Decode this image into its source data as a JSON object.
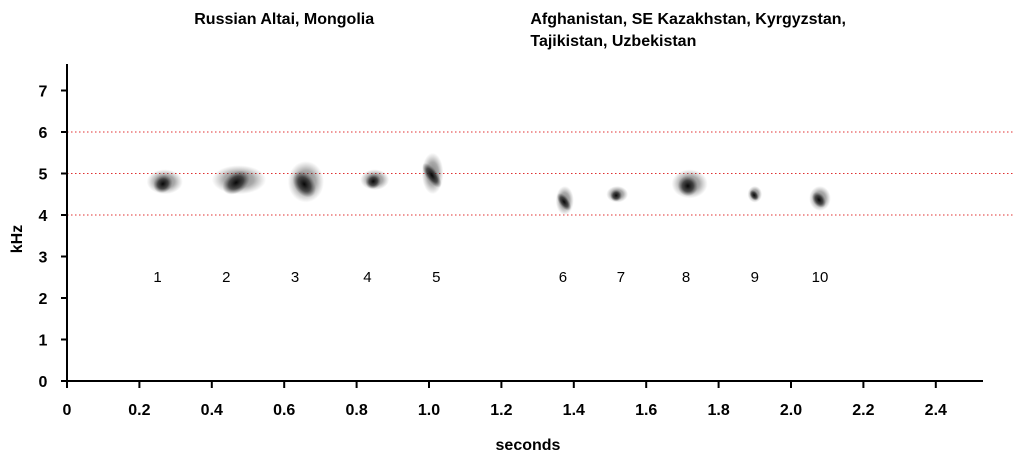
{
  "chart_data": {
    "type": "scatter",
    "title": "",
    "xlabel": "seconds",
    "ylabel": "kHz",
    "xlim": [
      0,
      2.5
    ],
    "ylim": [
      0,
      7.5
    ],
    "x_ticks": [
      0,
      0.2,
      0.4,
      0.6,
      0.8,
      1.0,
      1.2,
      1.4,
      1.6,
      1.8,
      2.0,
      2.2,
      2.4
    ],
    "x_tick_labels": [
      "0",
      "0.2",
      "0.4",
      "0.6",
      "0.8",
      "1.0",
      "1.2",
      "1.4",
      "1.6",
      "1.8",
      "2.0",
      "2.2",
      "2.4"
    ],
    "y_ticks": [
      0,
      1,
      2,
      3,
      4,
      5,
      6,
      7
    ],
    "y_tick_labels": [
      "0",
      "1",
      "2",
      "3",
      "4",
      "5",
      "6",
      "7"
    ],
    "reference_lines_khz": [
      4,
      5,
      6
    ],
    "reference_line_color": "#e03030",
    "grid": false,
    "regions": [
      {
        "label": "Russian Altai, Mongolia",
        "x_center": 0.6
      },
      {
        "label_lines": [
          "Afghanistan, SE Kazakhstan, Kyrgyzstan,",
          "Tajikistan, Uzbekistan"
        ],
        "x_start": 1.28
      }
    ],
    "notes": [
      {
        "label": "1",
        "t_start": 0.22,
        "t_end": 0.32,
        "f_low": 4.5,
        "f_high": 5.1,
        "label_t": 0.25
      },
      {
        "label": "2",
        "t_start": 0.4,
        "t_end": 0.55,
        "f_low": 4.5,
        "f_high": 5.2,
        "label_t": 0.44
      },
      {
        "label": "3",
        "t_start": 0.61,
        "t_end": 0.71,
        "f_low": 4.3,
        "f_high": 5.3,
        "label_t": 0.63
      },
      {
        "label": "4",
        "t_start": 0.81,
        "t_end": 0.89,
        "f_low": 4.6,
        "f_high": 5.1,
        "label_t": 0.83
      },
      {
        "label": "5",
        "t_start": 0.98,
        "t_end": 1.04,
        "f_low": 4.5,
        "f_high": 5.5,
        "label_t": 1.02
      },
      {
        "label": "6",
        "t_start": 1.35,
        "t_end": 1.4,
        "f_low": 4.0,
        "f_high": 4.7,
        "label_t": 1.37
      },
      {
        "label": "7",
        "t_start": 1.49,
        "t_end": 1.55,
        "f_low": 4.3,
        "f_high": 4.7,
        "label_t": 1.53
      },
      {
        "label": "8",
        "t_start": 1.67,
        "t_end": 1.77,
        "f_low": 4.4,
        "f_high": 5.1,
        "label_t": 1.71
      },
      {
        "label": "9",
        "t_start": 1.88,
        "t_end": 1.92,
        "f_low": 4.3,
        "f_high": 4.7,
        "label_t": 1.9
      },
      {
        "label": "10",
        "t_start": 2.05,
        "t_end": 2.11,
        "f_low": 4.1,
        "f_high": 4.7,
        "label_t": 2.08
      }
    ]
  }
}
